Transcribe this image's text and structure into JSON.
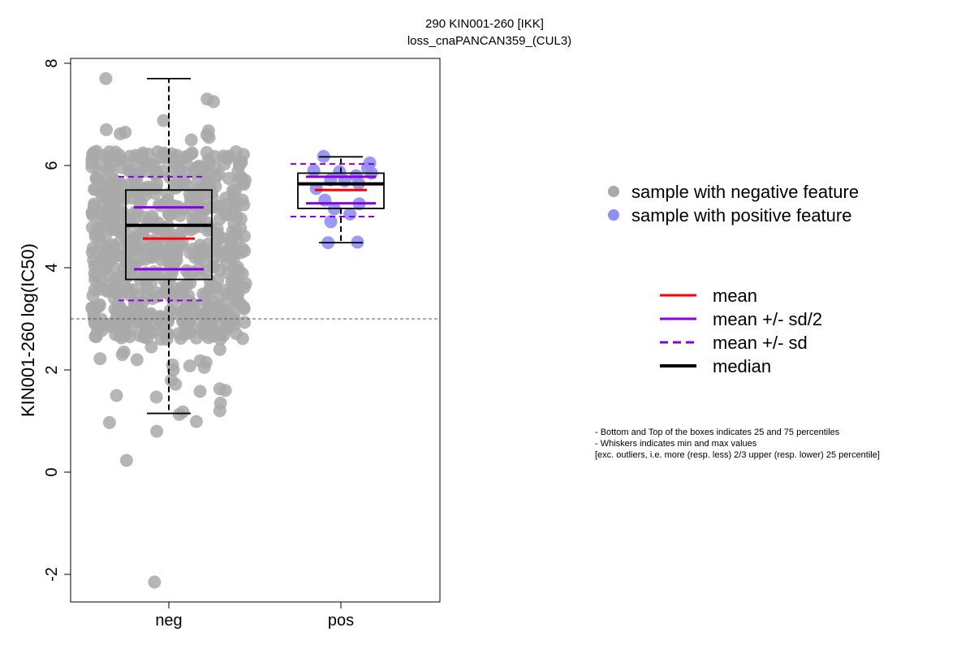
{
  "chart_data": {
    "type": "box-scatter",
    "title": "290 KIN001-260 [IKK]",
    "subtitle": "loss_cnaPANCAN359_(CUL3)",
    "ylabel": "KIN001-260 log(IC50)",
    "xlabel": "",
    "categories": [
      "neg",
      "pos"
    ],
    "yticks": [
      -2,
      0,
      2,
      4,
      6,
      8
    ],
    "ylim": [
      -2.5,
      8.1
    ],
    "threshold": 3.0,
    "groups": [
      {
        "name": "neg",
        "point_color": "#a9a9a9",
        "box": {
          "whisker_low": 1.15,
          "q1": 3.77,
          "median": 4.83,
          "q3": 5.52,
          "whisker_high": 7.7
        },
        "mean": 4.57,
        "mean_minus_sd_half": 3.97,
        "mean_plus_sd_half": 5.18,
        "mean_minus_sd": 3.36,
        "mean_plus_sd": 5.78,
        "points": [
          -2.15,
          0.23,
          0.8,
          0.97,
          0.99,
          1.13,
          1.18,
          1.2,
          1.35,
          1.47,
          1.5,
          1.58,
          1.6,
          1.63,
          1.72,
          1.8,
          2.0,
          2.05,
          2.08,
          2.1,
          2.15,
          2.18,
          2.2,
          2.22,
          2.3,
          2.35,
          2.4,
          2.45,
          6.5,
          6.55,
          6.6,
          6.62,
          6.65,
          6.68,
          6.7,
          6.88,
          7.25,
          7.3,
          7.7
        ]
      },
      {
        "name": "pos",
        "point_color": "#8f8ff5",
        "box": {
          "whisker_low": 4.49,
          "q1": 5.16,
          "median": 5.64,
          "q3": 5.85,
          "whisker_high": 6.17
        },
        "mean": 5.52,
        "mean_minus_sd_half": 5.26,
        "mean_plus_sd_half": 5.78,
        "mean_minus_sd": 5.0,
        "mean_plus_sd": 6.03,
        "points": [
          4.49,
          4.5,
          4.9,
          5.05,
          5.15,
          5.25,
          5.32,
          5.55,
          5.65,
          5.7,
          5.72,
          5.8,
          5.85,
          5.88,
          5.9,
          5.95,
          6.05,
          6.18
        ]
      }
    ],
    "legend_points": [
      {
        "label": "sample with negative feature",
        "color": "#a9a9a9"
      },
      {
        "label": "sample with positive feature",
        "color": "#8f8ff5"
      }
    ],
    "legend_lines": [
      {
        "label": "mean",
        "color": "#ff0000",
        "style": "solid"
      },
      {
        "label": "mean +/- sd/2",
        "color": "#8a00e6",
        "style": "solid"
      },
      {
        "label": "mean +/- sd",
        "color": "#8a00e6",
        "style": "dashed"
      },
      {
        "label": "median",
        "color": "#000000",
        "style": "thick"
      }
    ],
    "notes": [
      "- Bottom and Top of the boxes indicates 25 and 75 percentiles",
      "- Whiskers indicates min and max values",
      "[exc. outliers, i.e. more (resp. less) 2/3 upper (resp. lower) 25 percentile]"
    ]
  }
}
